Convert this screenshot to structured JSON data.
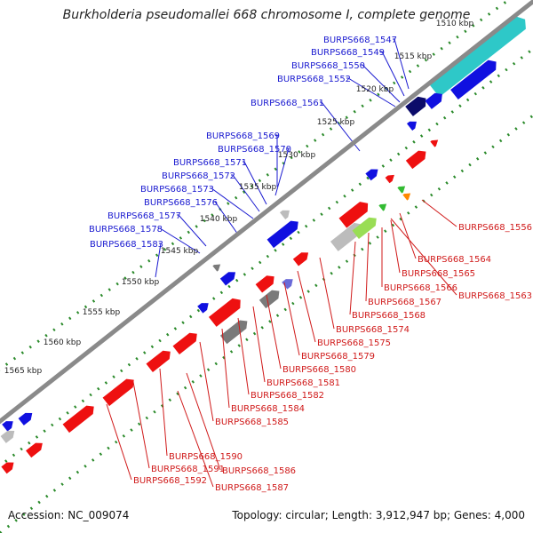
{
  "title": "Burkholderia pseudomallei 668 chromosome I, complete genome",
  "footer": {
    "accession": "Accession: NC_009074",
    "topology": "Topology: circular; Length: 3,912,947 bp; Genes: 4,000"
  },
  "ticks": [
    "1510 kbp",
    "1515 kbp",
    "1520 kbp",
    "1525 kbp",
    "1530 kbp",
    "1535 kbp",
    "1540 kbp",
    "1545 kbp",
    "1550 kbp",
    "1555 kbp",
    "1560 kbp",
    "1565 kbp"
  ],
  "colors": {
    "forward": "#1010e0",
    "reverse": "#ee1010",
    "forward_label": "#1a1ad0",
    "reverse_label": "#d01a1a",
    "backbone": "#8a8a8a",
    "dots": "#2a8a2a",
    "cyan": "#2ec8c8",
    "navy": "#0c0c6a"
  },
  "forward_labels": [
    "BURPS668_1547",
    "BURPS668_1549",
    "BURPS668_1550",
    "BURPS668_1552",
    "BURPS668_1561",
    "BURPS668_1569",
    "BURPS668_1570",
    "BURPS668_1571",
    "BURPS668_1572",
    "BURPS668_1573",
    "BURPS668_1576",
    "BURPS668_1577",
    "BURPS668_1578",
    "BURPS668_1583"
  ],
  "reverse_labels": [
    "BURPS668_1556",
    "BURPS668_1564",
    "BURPS668_1565",
    "BURPS668_1566",
    "BURPS668_1563",
    "BURPS668_1567",
    "BURPS668_1568",
    "BURPS668_1574",
    "BURPS668_1575",
    "BURPS668_1579",
    "BURPS668_1580",
    "BURPS668_1581",
    "BURPS668_1582",
    "BURPS668_1584",
    "BURPS668_1585",
    "BURPS668_1590",
    "BURPS668_1591",
    "BURPS668_1586",
    "BURPS668_1592",
    "BURPS668_1587"
  ]
}
